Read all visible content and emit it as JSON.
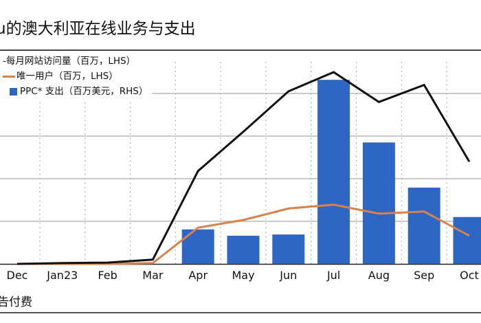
{
  "title": "u的澳大利亚在线业务与支出",
  "footnote": "告付费",
  "chart_data": {
    "type": "bar+line",
    "title": "u的澳大利亚在线业务与支出",
    "categories": [
      "Dec",
      "Jan23",
      "Feb",
      "Mar",
      "Apr",
      "May",
      "Jun",
      "Jul",
      "Aug",
      "Sep",
      "Oct"
    ],
    "series": [
      {
        "name": "-每月网站访问量（百万，LHS）",
        "kind": "line",
        "color": "#111111",
        "values": [
          0,
          0.02,
          0.03,
          0.1,
          2.18,
          3.1,
          4.05,
          4.5,
          3.8,
          4.2,
          2.4
        ]
      },
      {
        "name": "唯一用户（百万，LHS）",
        "kind": "line",
        "color": "#d9814a",
        "values": [
          0,
          0,
          0,
          0.02,
          0.85,
          1.03,
          1.3,
          1.39,
          1.18,
          1.23,
          0.66
        ]
      },
      {
        "name": "PPC* 支出（百万美元，RHS）",
        "kind": "bar",
        "color": "#2e66c4",
        "values": [
          0,
          0,
          0,
          0,
          0.81,
          0.66,
          0.69,
          4.32,
          2.85,
          1.79,
          1.1
        ]
      }
    ],
    "ylim": [
      0,
      4.9
    ],
    "gridlines": [
      1,
      2,
      3,
      4
    ],
    "grid": true,
    "legend_position": "top-left",
    "xlabel": "",
    "ylabel": ""
  }
}
